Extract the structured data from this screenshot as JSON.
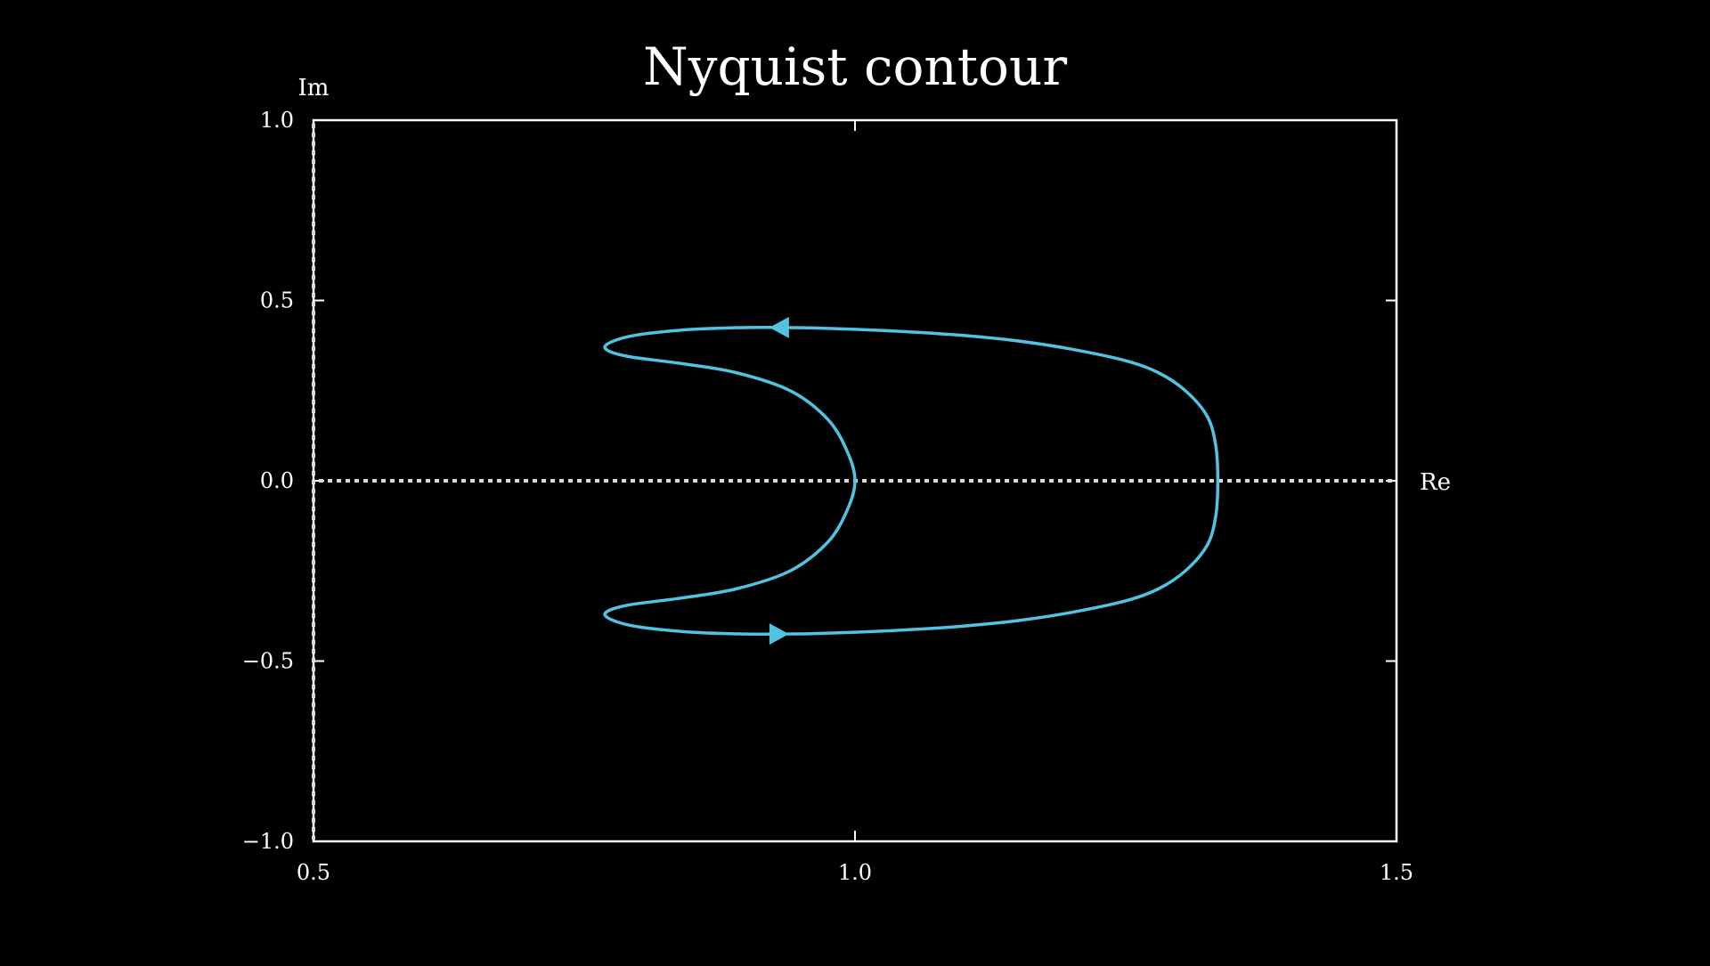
{
  "chart_data": {
    "type": "line",
    "title": "Nyquist contour",
    "xlabel": "Re",
    "ylabel": "Im",
    "xlim": [
      0.5,
      1.5
    ],
    "ylim": [
      -1.0,
      1.0
    ],
    "xticks": [
      0.5,
      1.0,
      1.5
    ],
    "yticks": [
      -1.0,
      -0.5,
      0.0,
      0.5,
      1.0
    ],
    "xtick_labels": [
      "0.5",
      "1.0",
      "1.5"
    ],
    "ytick_labels": [
      "−1.0",
      "−0.5",
      "0.0",
      "0.5",
      "1.0"
    ],
    "grid": false,
    "reference_lines": [
      {
        "orientation": "horizontal",
        "value": 0.0,
        "style": "dotted",
        "color": "#d9d9d9"
      },
      {
        "orientation": "vertical",
        "value": 0.5,
        "style": "dotted",
        "color": "#d9d9d9"
      }
    ],
    "series": [
      {
        "color": "#4fc3e0",
        "points": [
          [
            0.93,
            -0.425
          ],
          [
            0.96,
            -0.424
          ],
          [
            1.0,
            -0.42
          ],
          [
            1.05,
            -0.413
          ],
          [
            1.1,
            -0.403
          ],
          [
            1.15,
            -0.388
          ],
          [
            1.2,
            -0.365
          ],
          [
            1.25,
            -0.333
          ],
          [
            1.28,
            -0.3
          ],
          [
            1.305,
            -0.25
          ],
          [
            1.325,
            -0.18
          ],
          [
            1.333,
            -0.1
          ],
          [
            1.335,
            0.0
          ],
          [
            1.333,
            0.1
          ],
          [
            1.325,
            0.18
          ],
          [
            1.305,
            0.25
          ],
          [
            1.28,
            0.3
          ],
          [
            1.25,
            0.333
          ],
          [
            1.2,
            0.365
          ],
          [
            1.15,
            0.388
          ],
          [
            1.1,
            0.403
          ],
          [
            1.05,
            0.413
          ],
          [
            1.0,
            0.42
          ],
          [
            0.96,
            0.424
          ],
          [
            0.93,
            0.425
          ],
          [
            0.9,
            0.425
          ],
          [
            0.85,
            0.42
          ],
          [
            0.8,
            0.405
          ],
          [
            0.775,
            0.385
          ],
          [
            0.77,
            0.365
          ],
          [
            0.79,
            0.345
          ],
          [
            0.84,
            0.325
          ],
          [
            0.89,
            0.3
          ],
          [
            0.94,
            0.25
          ],
          [
            0.975,
            0.17
          ],
          [
            0.993,
            0.08
          ],
          [
            1.0,
            0.0
          ],
          [
            0.993,
            -0.08
          ],
          [
            0.975,
            -0.17
          ],
          [
            0.94,
            -0.25
          ],
          [
            0.89,
            -0.3
          ],
          [
            0.84,
            -0.325
          ],
          [
            0.79,
            -0.345
          ],
          [
            0.77,
            -0.365
          ],
          [
            0.775,
            -0.385
          ],
          [
            0.8,
            -0.405
          ],
          [
            0.85,
            -0.42
          ],
          [
            0.9,
            -0.425
          ],
          [
            0.93,
            -0.425
          ]
        ],
        "arrows": [
          {
            "at": [
              0.93,
              0.425
            ],
            "direction": "left"
          },
          {
            "at": [
              0.93,
              -0.425
            ],
            "direction": "right"
          }
        ]
      }
    ],
    "colors": {
      "background": "#000000",
      "axes": "#ffffff",
      "curve": "#4fc3e0",
      "reference": "#d9d9d9"
    }
  }
}
